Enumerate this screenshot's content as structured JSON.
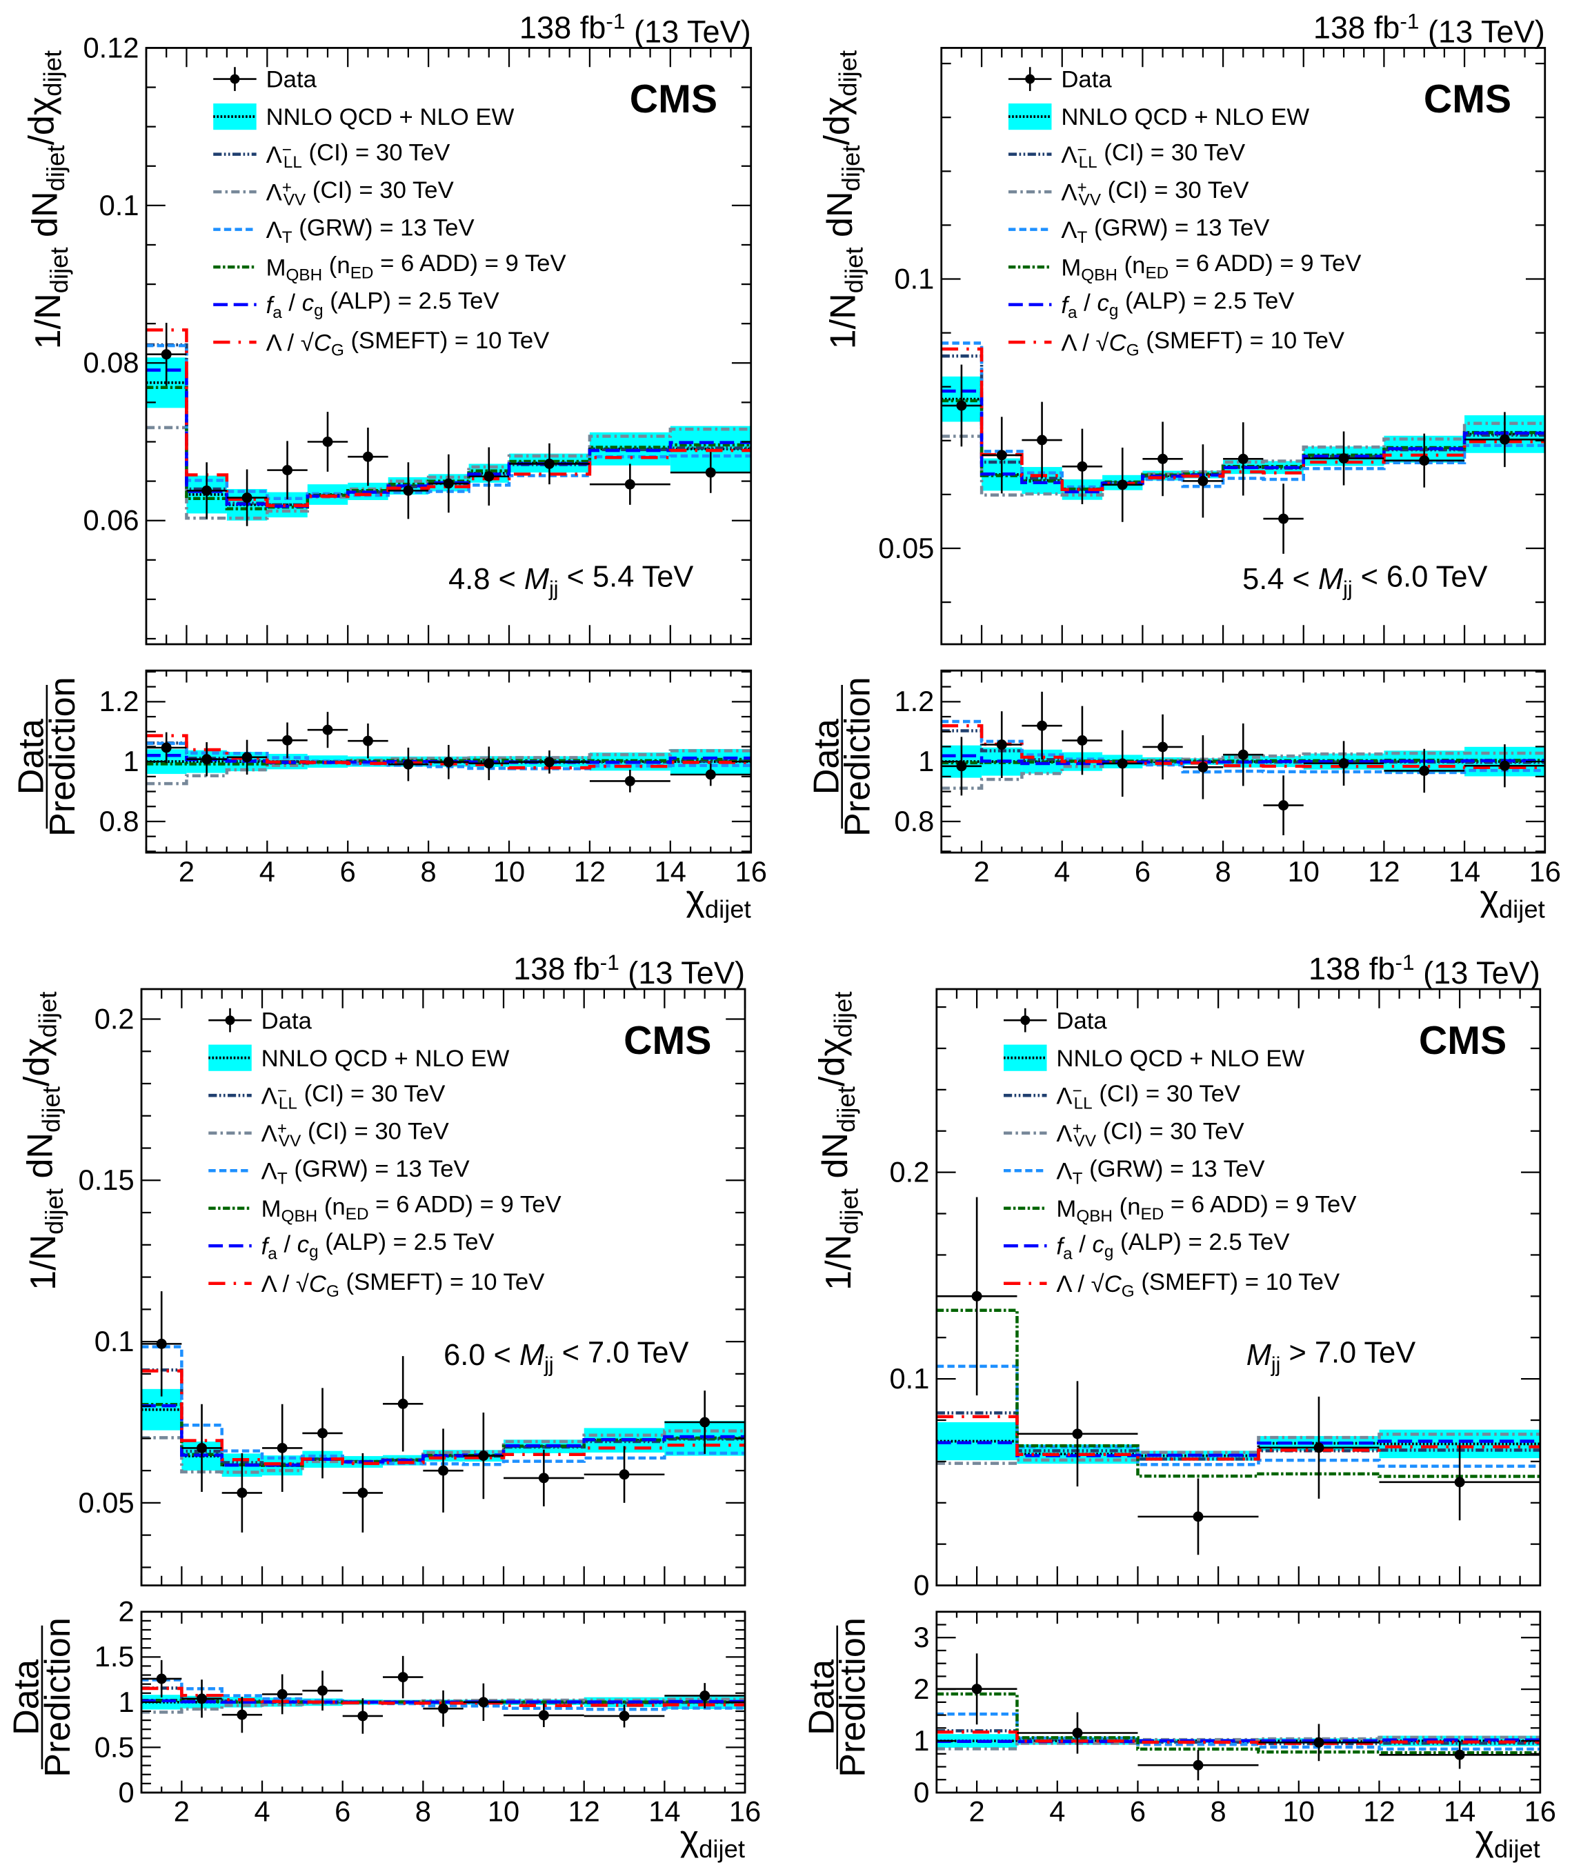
{
  "lumi": [
    {
      "t": "138 fb"
    },
    {
      "t": "-1",
      "s": "sup"
    },
    {
      "t": " (13 TeV)"
    }
  ],
  "cms_label": "CMS",
  "y_title": [
    {
      "t": "1/N"
    },
    {
      "t": "dijet",
      "s": "sub"
    },
    {
      "t": " dN"
    },
    {
      "t": "dijet",
      "s": "sub"
    },
    {
      "t": "/dχ"
    },
    {
      "t": "dijet",
      "s": "sub"
    }
  ],
  "ratio_title": {
    "numerator": "Data",
    "denominator": "Prediction"
  },
  "x_title": [
    {
      "t": "χ"
    },
    {
      "t": "dijet",
      "s": "sub"
    }
  ],
  "colors": {
    "band": "#00ffff",
    "data": "#000000",
    "prediction_line": "#000000"
  },
  "legend": [
    {
      "key": "data",
      "segs": [
        {
          "t": "Data"
        }
      ]
    },
    {
      "key": "qcd",
      "segs": [
        {
          "t": "NNLO QCD + NLO EW"
        }
      ]
    },
    {
      "key": "ci_ll",
      "segs": [
        {
          "t": "Λ"
        },
        {
          "t": "−",
          "s": "sup"
        },
        {
          "t": "LL",
          "s": "subafter"
        },
        {
          "t": " (CI) = 30 TeV"
        }
      ]
    },
    {
      "key": "ci_vv",
      "segs": [
        {
          "t": "Λ"
        },
        {
          "t": "+",
          "s": "sup"
        },
        {
          "t": "VV",
          "s": "subafter"
        },
        {
          "t": " (CI) = 30 TeV"
        }
      ]
    },
    {
      "key": "grw",
      "segs": [
        {
          "t": "Λ"
        },
        {
          "t": "T",
          "s": "sub"
        },
        {
          "t": " (GRW) = 13 TeV"
        }
      ]
    },
    {
      "key": "qbh",
      "segs": [
        {
          "t": "M"
        },
        {
          "t": "QBH",
          "s": "sub"
        },
        {
          "t": " (n"
        },
        {
          "t": "ED",
          "s": "sub"
        },
        {
          "t": " = 6 ADD) = 9 TeV"
        }
      ]
    },
    {
      "key": "alp",
      "segs": [
        {
          "t": "f",
          "s": "i"
        },
        {
          "t": "a",
          "s": "sub"
        },
        {
          "t": " / "
        },
        {
          "t": "c",
          "s": "i"
        },
        {
          "t": "g",
          "s": "sub"
        },
        {
          "t": " (ALP) = 2.5 TeV"
        }
      ]
    },
    {
      "key": "smeft",
      "segs": [
        {
          "t": "Λ / √"
        },
        {
          "t": "C",
          "s": "i"
        },
        {
          "t": "G",
          "s": "sub"
        },
        {
          "t": " (SMEFT) = 10 TeV"
        }
      ]
    }
  ],
  "model_colors": {
    "ci_ll": "#1f3f6f",
    "ci_vv": "#778899",
    "grw": "#1e90ff",
    "qbh": "#006400",
    "alp": "#0000ff",
    "smeft": "#ff0000"
  },
  "chart_data": [
    {
      "type": "bar",
      "region_label": [
        {
          "t": "4.8 < "
        },
        {
          "t": "M",
          "s": "i"
        },
        {
          "t": "jj",
          "s": "sub"
        },
        {
          "t": " < 5.4 TeV"
        }
      ],
      "bin_edges": [
        1,
        2,
        3,
        4,
        5,
        6,
        7,
        8,
        9,
        10,
        12,
        14,
        16
      ],
      "xlim": [
        1,
        16
      ],
      "xticks": [
        {
          "v": 2,
          "label": "2"
        },
        {
          "v": 4,
          "label": "4"
        },
        {
          "v": 6,
          "label": "6"
        },
        {
          "v": 8,
          "label": "8"
        },
        {
          "v": 10,
          "label": "10"
        },
        {
          "v": 12,
          "label": "12"
        },
        {
          "v": 14,
          "label": "14"
        },
        {
          "v": 16,
          "label": "16"
        }
      ],
      "ylim": [
        0.0443,
        0.12
      ],
      "yticks": [
        {
          "v": 0.06,
          "label": "0.06"
        },
        {
          "v": 0.08,
          "label": "0.08"
        },
        {
          "v": 0.1,
          "label": "0.1"
        },
        {
          "v": 0.12,
          "label": "0.12"
        }
      ],
      "ratio_ylim": [
        0.696,
        1.304
      ],
      "ratio_yticks": [
        {
          "v": 0.8,
          "label": "0.8"
        },
        {
          "v": 1,
          "label": "1"
        },
        {
          "v": 1.2,
          "label": "1.2"
        }
      ],
      "data": {
        "values": [
          0.0811,
          0.0638,
          0.0629,
          0.0664,
          0.07,
          0.0681,
          0.0638,
          0.0647,
          0.0656,
          0.0672,
          0.0646,
          0.0661
        ],
        "errors": [
          0.004,
          0.0036,
          0.0036,
          0.0037,
          0.0038,
          0.0037,
          0.0036,
          0.0037,
          0.0037,
          0.0026,
          0.0026,
          0.0026
        ]
      },
      "prediction": {
        "values": [
          0.0775,
          0.0633,
          0.062,
          0.062,
          0.0633,
          0.0637,
          0.0644,
          0.0648,
          0.066,
          0.0673,
          0.0691,
          0.0691
        ],
        "errors": [
          0.0032,
          0.0024,
          0.002,
          0.0016,
          0.0013,
          0.0011,
          0.0011,
          0.0011,
          0.0012,
          0.0012,
          0.0021,
          0.0029
        ]
      },
      "models": {
        "ci_ll": [
          0.0823,
          0.064,
          0.0622,
          0.062,
          0.0632,
          0.0636,
          0.0643,
          0.0647,
          0.0658,
          0.0671,
          0.069,
          0.0692
        ],
        "ci_vv": [
          0.0718,
          0.0603,
          0.0603,
          0.0612,
          0.063,
          0.064,
          0.065,
          0.0655,
          0.0668,
          0.0682,
          0.0707,
          0.0716
        ],
        "grw": [
          0.0822,
          0.0651,
          0.0637,
          0.0628,
          0.0634,
          0.0632,
          0.0636,
          0.0637,
          0.0645,
          0.0657,
          0.0681,
          0.0682
        ],
        "qbh": [
          0.0769,
          0.0628,
          0.0615,
          0.0617,
          0.0632,
          0.0638,
          0.0646,
          0.065,
          0.0663,
          0.0675,
          0.0693,
          0.0696
        ],
        "alp": [
          0.0791,
          0.0637,
          0.0621,
          0.0618,
          0.0631,
          0.0636,
          0.0644,
          0.0648,
          0.0659,
          0.0672,
          0.0689,
          0.0699
        ],
        "smeft": [
          0.0842,
          0.0658,
          0.0627,
          0.0619,
          0.0631,
          0.0633,
          0.0641,
          0.0643,
          0.0653,
          0.0659,
          0.068,
          0.0689
        ]
      }
    },
    {
      "type": "bar",
      "region_label": [
        {
          "t": "5.4 < "
        },
        {
          "t": "M",
          "s": "i"
        },
        {
          "t": "jj",
          "s": "sub"
        },
        {
          "t": " < 6.0 TeV"
        }
      ],
      "bin_edges": [
        1,
        2,
        3,
        4,
        5,
        6,
        7,
        8,
        9,
        10,
        12,
        14,
        16
      ],
      "xlim": [
        1,
        16
      ],
      "xticks": [
        {
          "v": 2,
          "label": "2"
        },
        {
          "v": 4,
          "label": "4"
        },
        {
          "v": 6,
          "label": "6"
        },
        {
          "v": 8,
          "label": "8"
        },
        {
          "v": 10,
          "label": "10"
        },
        {
          "v": 12,
          "label": "12"
        },
        {
          "v": 14,
          "label": "14"
        },
        {
          "v": 16,
          "label": "16"
        }
      ],
      "ylim": [
        0.0322,
        0.1429
      ],
      "yticks": [
        {
          "v": 0.05,
          "label": "0.05"
        },
        {
          "v": 0.1,
          "label": "0.1"
        }
      ],
      "ratio_ylim": [
        0.696,
        1.304
      ],
      "ratio_yticks": [
        {
          "v": 0.8,
          "label": "0.8"
        },
        {
          "v": 1,
          "label": "1"
        },
        {
          "v": 1.2,
          "label": "1.2"
        }
      ],
      "data": {
        "values": [
          0.0765,
          0.0673,
          0.0701,
          0.0652,
          0.0618,
          0.0666,
          0.0625,
          0.0666,
          0.0555,
          0.0667,
          0.0663,
          0.0702
        ],
        "errors": [
          0.0076,
          0.0071,
          0.0071,
          0.007,
          0.0069,
          0.0069,
          0.0068,
          0.0068,
          0.0065,
          0.005,
          0.005,
          0.0051
        ]
      },
      "prediction": {
        "values": [
          0.0777,
          0.0637,
          0.0626,
          0.0609,
          0.0622,
          0.0635,
          0.0637,
          0.0651,
          0.065,
          0.0671,
          0.0684,
          0.0712
        ],
        "errors": [
          0.0042,
          0.003,
          0.0025,
          0.0019,
          0.0014,
          0.0009,
          0.0007,
          0.0013,
          0.0012,
          0.0018,
          0.0025,
          0.0035
        ]
      },
      "models": {
        "ci_ll": [
          0.0857,
          0.066,
          0.063,
          0.061,
          0.0622,
          0.0634,
          0.0636,
          0.065,
          0.0649,
          0.067,
          0.0683,
          0.071
        ],
        "ci_vv": [
          0.0708,
          0.0599,
          0.0601,
          0.0599,
          0.062,
          0.0638,
          0.0642,
          0.066,
          0.0662,
          0.0688,
          0.0703,
          0.0732
        ],
        "grw": [
          0.0881,
          0.068,
          0.064,
          0.0614,
          0.062,
          0.0628,
          0.0615,
          0.063,
          0.0628,
          0.0648,
          0.0659,
          0.0691
        ],
        "qbh": [
          0.0774,
          0.0635,
          0.0625,
          0.061,
          0.0623,
          0.0636,
          0.0638,
          0.0652,
          0.0652,
          0.0673,
          0.0687,
          0.0715
        ],
        "alp": [
          0.0792,
          0.0638,
          0.0622,
          0.0605,
          0.0621,
          0.0634,
          0.0636,
          0.065,
          0.065,
          0.0671,
          0.0685,
          0.0714
        ],
        "smeft": [
          0.087,
          0.0674,
          0.0635,
          0.0609,
          0.062,
          0.0631,
          0.0634,
          0.0642,
          0.064,
          0.066,
          0.0673,
          0.0698
        ]
      }
    },
    {
      "type": "bar",
      "region_label": [
        {
          "t": "6.0 < "
        },
        {
          "t": "M",
          "s": "i"
        },
        {
          "t": "jj",
          "s": "sub"
        },
        {
          "t": " < 7.0 TeV"
        }
      ],
      "bin_edges": [
        1,
        2,
        3,
        4,
        5,
        6,
        7,
        8,
        9,
        10,
        12,
        14,
        16
      ],
      "xlim": [
        1,
        16
      ],
      "xticks": [
        {
          "v": 2,
          "label": "2"
        },
        {
          "v": 4,
          "label": "4"
        },
        {
          "v": 6,
          "label": "6"
        },
        {
          "v": 8,
          "label": "8"
        },
        {
          "v": 10,
          "label": "10"
        },
        {
          "v": 12,
          "label": "12"
        },
        {
          "v": 14,
          "label": "14"
        },
        {
          "v": 16,
          "label": "16"
        }
      ],
      "ylim": [
        0.0244,
        0.2093
      ],
      "yticks": [
        {
          "v": 0.05,
          "label": "0.05"
        },
        {
          "v": 0.1,
          "label": "0.1"
        },
        {
          "v": 0.15,
          "label": "0.15"
        },
        {
          "v": 0.2,
          "label": "0.2"
        }
      ],
      "ratio_ylim": [
        0,
        2
      ],
      "ratio_yticks": [
        {
          "v": 0,
          "label": "0"
        },
        {
          "v": 0.5,
          "label": "0.5"
        },
        {
          "v": 1,
          "label": "1"
        },
        {
          "v": 1.5,
          "label": "1.5"
        },
        {
          "v": 2,
          "label": "2"
        }
      ],
      "data": {
        "values": [
          0.0993,
          0.067,
          0.0531,
          0.067,
          0.0716,
          0.0531,
          0.0807,
          0.06,
          0.0646,
          0.0577,
          0.0588,
          0.075
        ],
        "errors": [
          0.0163,
          0.0136,
          0.0123,
          0.0136,
          0.014,
          0.0123,
          0.0148,
          0.013,
          0.0134,
          0.0088,
          0.0088,
          0.0098
        ]
      },
      "prediction": {
        "values": [
          0.0789,
          0.0645,
          0.0617,
          0.0616,
          0.0635,
          0.0627,
          0.0632,
          0.0646,
          0.0646,
          0.0675,
          0.0694,
          0.07
        ],
        "errors": [
          0.0064,
          0.0045,
          0.0036,
          0.0031,
          0.0026,
          0.0018,
          0.0016,
          0.0018,
          0.0018,
          0.0021,
          0.0038,
          0.0054
        ]
      },
      "models": {
        "ci_ll": [
          0.0912,
          0.066,
          0.0625,
          0.062,
          0.0636,
          0.0628,
          0.0632,
          0.0645,
          0.0645,
          0.0673,
          0.069,
          0.0698
        ],
        "ci_vv": [
          0.0702,
          0.0596,
          0.0595,
          0.06,
          0.0628,
          0.0625,
          0.0635,
          0.0656,
          0.0658,
          0.069,
          0.071,
          0.0723
        ],
        "grw": [
          0.0984,
          0.0741,
          0.0661,
          0.0639,
          0.0645,
          0.0626,
          0.0622,
          0.0621,
          0.0619,
          0.0629,
          0.0639,
          0.0654
        ],
        "qbh": [
          0.0805,
          0.065,
          0.0618,
          0.0616,
          0.0635,
          0.0628,
          0.0633,
          0.0647,
          0.0647,
          0.0676,
          0.0695,
          0.0701
        ],
        "alp": [
          0.0801,
          0.0648,
          0.0617,
          0.0617,
          0.0635,
          0.0627,
          0.0632,
          0.0646,
          0.0648,
          0.0677,
          0.0696,
          0.0705
        ],
        "smeft": [
          0.0909,
          0.0693,
          0.0634,
          0.0621,
          0.0636,
          0.0622,
          0.0625,
          0.0639,
          0.064,
          0.065,
          0.067,
          0.0679
        ]
      }
    },
    {
      "type": "bar",
      "region_label": [
        {
          "t": "M",
          "s": "i"
        },
        {
          "t": "jj",
          "s": "sub"
        },
        {
          "t": " > 7.0 TeV"
        }
      ],
      "bin_edges": [
        1,
        3,
        6,
        9,
        12,
        16
      ],
      "xlim": [
        1,
        16
      ],
      "xticks": [
        {
          "v": 2,
          "label": "2"
        },
        {
          "v": 4,
          "label": "4"
        },
        {
          "v": 6,
          "label": "6"
        },
        {
          "v": 8,
          "label": "8"
        },
        {
          "v": 10,
          "label": "10"
        },
        {
          "v": 12,
          "label": "12"
        },
        {
          "v": 14,
          "label": "14"
        },
        {
          "v": 16,
          "label": "16"
        }
      ],
      "ylim": [
        0,
        0.2887
      ],
      "yticks": [
        {
          "v": 0,
          "label": "0"
        },
        {
          "v": 0.1,
          "label": "0.1"
        },
        {
          "v": 0.2,
          "label": "0.2"
        }
      ],
      "ratio_ylim": [
        0,
        3.5
      ],
      "ratio_yticks": [
        {
          "v": 0,
          "label": "0"
        },
        {
          "v": 1,
          "label": "1"
        },
        {
          "v": 2,
          "label": "2"
        },
        {
          "v": 3,
          "label": "3"
        }
      ],
      "data": {
        "values": [
          0.14,
          0.0734,
          0.0333,
          0.0667,
          0.05
        ],
        "errors": [
          0.048,
          0.0255,
          0.0185,
          0.0247,
          0.0185
        ]
      },
      "prediction": {
        "values": [
          0.0698,
          0.0636,
          0.0628,
          0.0688,
          0.0685
        ],
        "errors": [
          0.0092,
          0.0047,
          0.0024,
          0.0035,
          0.0069
        ]
      },
      "models": {
        "ci_ll": [
          0.0835,
          0.0652,
          0.0612,
          0.0652,
          0.0655
        ],
        "ci_vv": [
          0.0591,
          0.0607,
          0.0644,
          0.0716,
          0.0732
        ],
        "grw": [
          0.1061,
          0.0671,
          0.0585,
          0.0606,
          0.0577
        ],
        "qbh": [
          0.1332,
          0.0676,
          0.0529,
          0.054,
          0.0528
        ],
        "alp": [
          0.0691,
          0.0628,
          0.063,
          0.0689,
          0.0698
        ],
        "smeft": [
          0.0817,
          0.0634,
          0.0612,
          0.0655,
          0.0671
        ]
      }
    }
  ]
}
